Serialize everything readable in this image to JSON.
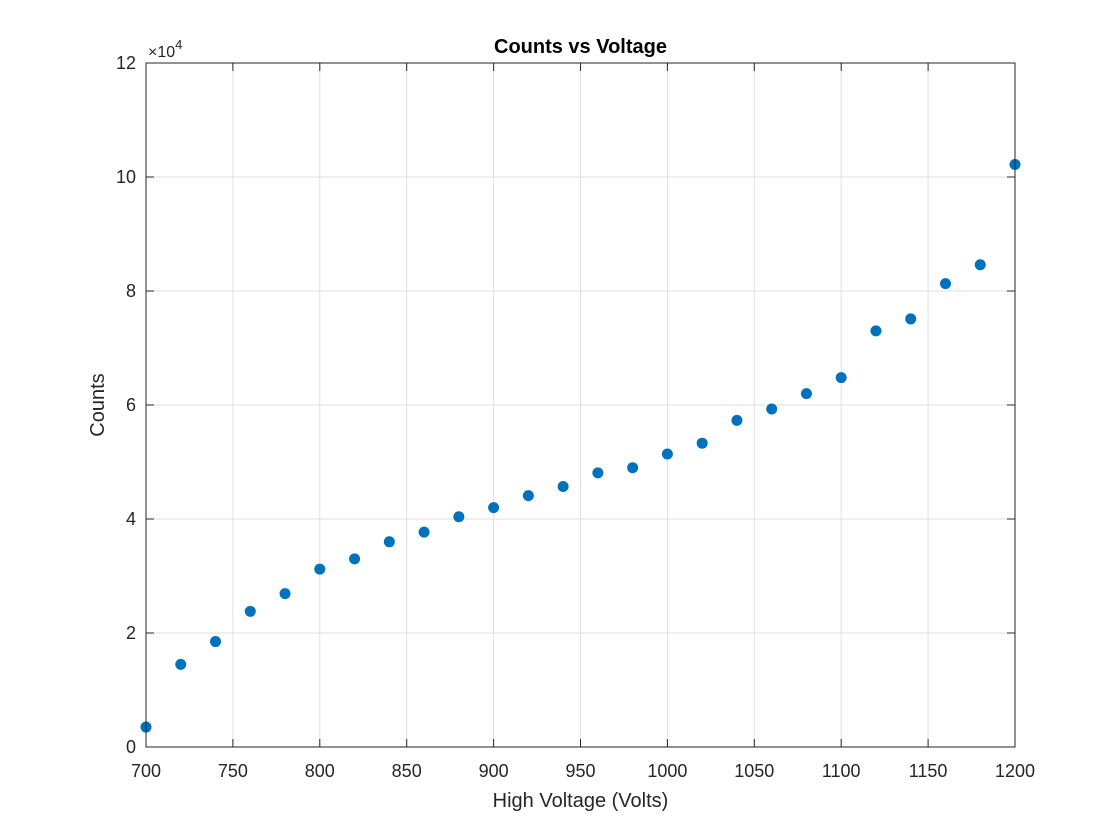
{
  "chart_data": {
    "type": "scatter",
    "title": "Counts vs Voltage",
    "xlabel": "High Voltage (Volts)",
    "ylabel": "Counts",
    "xlim": [
      700,
      1200
    ],
    "ylim": [
      0,
      120000
    ],
    "x_ticks": [
      700,
      750,
      800,
      850,
      900,
      950,
      1000,
      1050,
      1100,
      1150,
      1200
    ],
    "x_tick_labels": [
      "700",
      "750",
      "800",
      "850",
      "900",
      "950",
      "1000",
      "1050",
      "1100",
      "1150",
      "1200"
    ],
    "y_ticks": [
      0,
      20000,
      40000,
      60000,
      80000,
      100000,
      120000
    ],
    "y_tick_labels": [
      "0",
      "2",
      "4",
      "6",
      "8",
      "10",
      "12"
    ],
    "y_exponent_prefix": "×10",
    "y_exponent_power": "4",
    "grid": true,
    "marker_color": "#0072BD",
    "series": [
      {
        "x": [
          700,
          720,
          740,
          760,
          780,
          800,
          820,
          840,
          860,
          880,
          900,
          920,
          940,
          960,
          980,
          1000,
          1020,
          1040,
          1060,
          1080,
          1100,
          1120,
          1140,
          1160,
          1180,
          1200
        ],
        "y": [
          3500,
          14500,
          18500,
          23800,
          26900,
          31200,
          33000,
          36000,
          37700,
          40400,
          42000,
          44100,
          45700,
          48100,
          49000,
          51400,
          53300,
          57300,
          59300,
          62000,
          64800,
          73000,
          75100,
          81300,
          84600,
          102200
        ]
      }
    ]
  }
}
